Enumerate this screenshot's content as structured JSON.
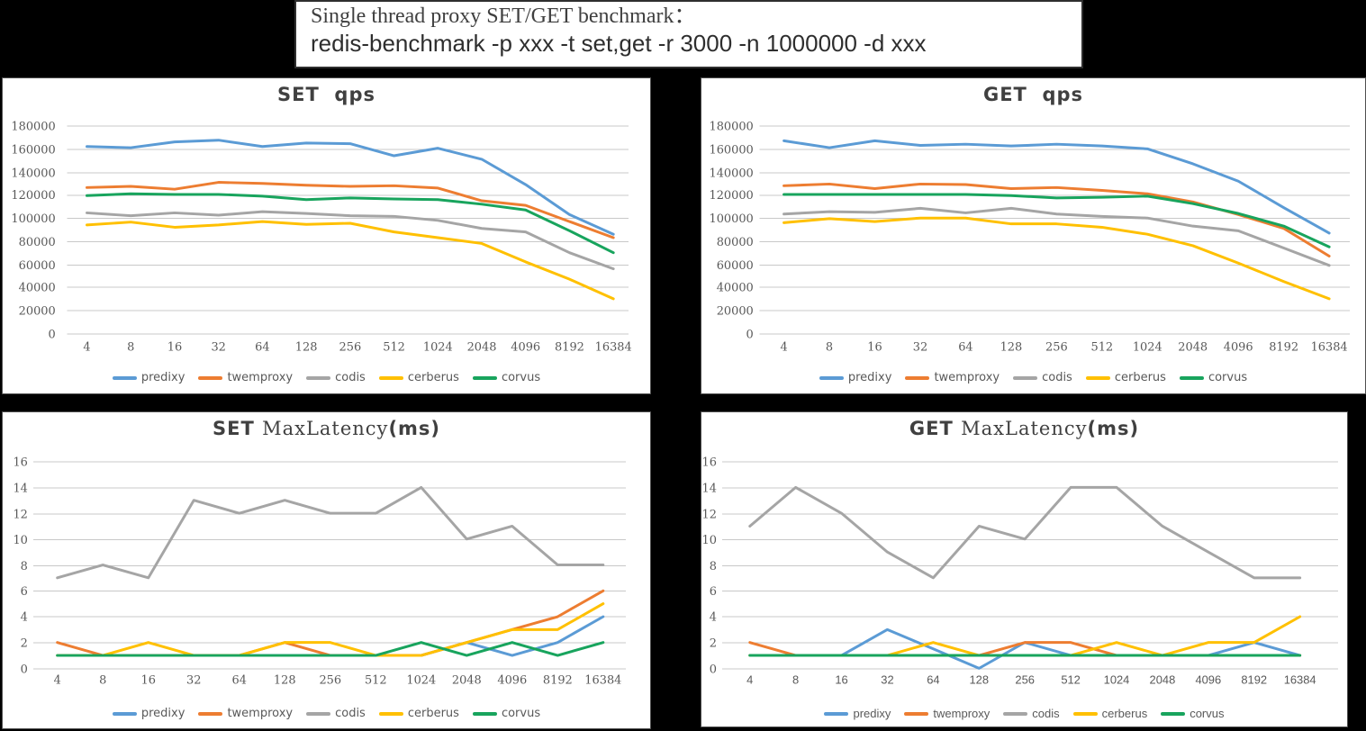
{
  "title_box": {
    "line1": "Single thread proxy SET/GET benchmark：",
    "line2": "redis-benchmark -p xxx -t set,get -r 3000 -n 1000000 -d xxx"
  },
  "colors": {
    "predixy": "#5B9BD5",
    "twemproxy": "#ED7D31",
    "codis": "#A5A5A5",
    "cerberus": "#FFC000",
    "corvus": "#18A45D",
    "grid": "#C8C8C8",
    "tick_text": "#595959",
    "title_text": "#404040"
  },
  "legend_labels": [
    "predixy",
    "twemproxy",
    "codis",
    "cerberus",
    "corvus"
  ],
  "chart_data": [
    {
      "type": "line",
      "title": "SET  qps",
      "title_parts": [
        {
          "text": "SET  qps",
          "style": "bold-sans"
        }
      ],
      "xlabel": "",
      "ylabel": "",
      "ylim": [
        0,
        180000
      ],
      "ystep": 20000,
      "grid": true,
      "legend_position": "bottom",
      "categories": [
        "4",
        "8",
        "16",
        "32",
        "64",
        "128",
        "256",
        "512",
        "1024",
        "2048",
        "4096",
        "8192",
        "16384"
      ],
      "series": [
        {
          "name": "predixy",
          "values": [
            162000,
            161000,
            166000,
            167500,
            162000,
            165000,
            164500,
            154000,
            160500,
            151000,
            129000,
            103000,
            86000
          ]
        },
        {
          "name": "twemproxy",
          "values": [
            126500,
            127500,
            125000,
            131000,
            130000,
            128500,
            127500,
            128000,
            126000,
            115000,
            111000,
            97000,
            83000
          ]
        },
        {
          "name": "codis",
          "values": [
            104500,
            102000,
            104500,
            102500,
            105500,
            104000,
            102000,
            101500,
            98000,
            91000,
            88000,
            70000,
            56000
          ]
        },
        {
          "name": "cerberus",
          "values": [
            94000,
            96500,
            92000,
            94000,
            97000,
            94500,
            95500,
            88000,
            83000,
            78000,
            62000,
            47000,
            30000
          ]
        },
        {
          "name": "corvus",
          "values": [
            119500,
            121000,
            120500,
            120500,
            119000,
            116000,
            117500,
            116500,
            116000,
            112000,
            107000,
            89000,
            70000
          ]
        }
      ]
    },
    {
      "type": "line",
      "title": "GET  qps",
      "title_parts": [
        {
          "text": "GET  qps",
          "style": "bold-sans"
        }
      ],
      "xlabel": "",
      "ylabel": "",
      "ylim": [
        0,
        180000
      ],
      "ystep": 20000,
      "grid": true,
      "legend_position": "bottom",
      "categories": [
        "4",
        "8",
        "16",
        "32",
        "64",
        "128",
        "256",
        "512",
        "1024",
        "2048",
        "4096",
        "8192",
        "16384"
      ],
      "series": [
        {
          "name": "predixy",
          "values": [
            167000,
            161000,
            167000,
            163000,
            164000,
            162500,
            164000,
            162500,
            160000,
            147000,
            132000,
            109000,
            87000
          ]
        },
        {
          "name": "twemproxy",
          "values": [
            128000,
            129500,
            125500,
            129500,
            129000,
            125500,
            126500,
            124000,
            121000,
            114000,
            103000,
            91000,
            67000
          ]
        },
        {
          "name": "codis",
          "values": [
            103500,
            105500,
            105000,
            108500,
            104500,
            108500,
            103500,
            101500,
            100000,
            93000,
            89000,
            74000,
            59000
          ]
        },
        {
          "name": "cerberus",
          "values": [
            96000,
            99500,
            97000,
            100000,
            100000,
            95000,
            95000,
            92000,
            86000,
            76000,
            61000,
            45000,
            30000
          ]
        },
        {
          "name": "corvus",
          "values": [
            120500,
            120500,
            120500,
            120500,
            120500,
            119500,
            117500,
            118000,
            119000,
            112500,
            104000,
            93000,
            75000
          ]
        }
      ]
    },
    {
      "type": "line",
      "title": "SET MaxLatency(ms)",
      "title_parts": [
        {
          "text": "SET ",
          "style": "bold-sans"
        },
        {
          "text": "MaxLatency",
          "style": "serif"
        },
        {
          "text": "(ms)",
          "style": "bold-sans"
        }
      ],
      "xlabel": "",
      "ylabel": "",
      "ylim": [
        0,
        16
      ],
      "ystep": 2,
      "grid": true,
      "legend_position": "bottom",
      "categories": [
        "4",
        "8",
        "16",
        "32",
        "64",
        "128",
        "256",
        "512",
        "1024",
        "2048",
        "4096",
        "8192",
        "16384"
      ],
      "series": [
        {
          "name": "predixy",
          "values": [
            1,
            1,
            1,
            1,
            1,
            1,
            1,
            1,
            1,
            2,
            1,
            2,
            4
          ]
        },
        {
          "name": "twemproxy",
          "values": [
            2,
            1,
            1,
            1,
            1,
            2,
            1,
            1,
            1,
            2,
            3,
            4,
            6
          ]
        },
        {
          "name": "codis",
          "values": [
            7,
            8,
            7,
            13,
            12,
            13,
            12,
            12,
            14,
            10,
            11,
            8,
            8
          ]
        },
        {
          "name": "cerberus",
          "values": [
            1,
            1,
            2,
            1,
            1,
            2,
            2,
            1,
            1,
            2,
            3,
            3,
            5
          ]
        },
        {
          "name": "corvus",
          "values": [
            1,
            1,
            1,
            1,
            1,
            1,
            1,
            1,
            2,
            1,
            2,
            1,
            2
          ]
        }
      ]
    },
    {
      "type": "line",
      "title": "GET MaxLatency(ms)",
      "title_parts": [
        {
          "text": "GET ",
          "style": "bold-sans"
        },
        {
          "text": "MaxLatency",
          "style": "serif"
        },
        {
          "text": "(ms)",
          "style": "bold-sans"
        }
      ],
      "xlabel": "",
      "ylabel": "",
      "ylim": [
        0,
        16
      ],
      "ystep": 2,
      "grid": true,
      "legend_position": "bottom",
      "categories": [
        "4",
        "8",
        "16",
        "32",
        "64",
        "128",
        "256",
        "512",
        "1024",
        "2048",
        "4096",
        "8192",
        "16384"
      ],
      "series": [
        {
          "name": "predixy",
          "values": [
            1,
            1,
            1,
            3,
            1.5,
            0,
            2,
            1,
            1,
            1,
            1,
            2,
            1
          ]
        },
        {
          "name": "twemproxy",
          "values": [
            2,
            1,
            1,
            1,
            1,
            1,
            2,
            2,
            1,
            1,
            1,
            1,
            1
          ]
        },
        {
          "name": "codis",
          "values": [
            11,
            14,
            12,
            9,
            7,
            11,
            10,
            14,
            14,
            11,
            9,
            7,
            7
          ]
        },
        {
          "name": "cerberus",
          "values": [
            1,
            1,
            1,
            1,
            2,
            1,
            1,
            1,
            2,
            1,
            2,
            2,
            4
          ]
        },
        {
          "name": "corvus",
          "values": [
            1,
            1,
            1,
            1,
            1,
            1,
            1,
            1,
            1,
            1,
            1,
            1,
            1
          ]
        }
      ]
    }
  ]
}
